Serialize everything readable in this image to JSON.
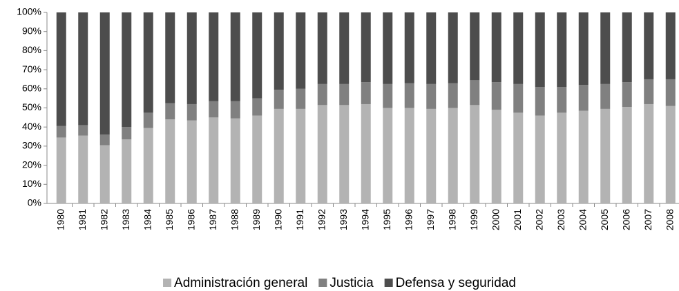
{
  "chart_data": {
    "type": "stacked_bar",
    "categories": [
      "1980",
      "1981",
      "1982",
      "1983",
      "1984",
      "1985",
      "1986",
      "1987",
      "1988",
      "1989",
      "1990",
      "1991",
      "1992",
      "1993",
      "1994",
      "1995",
      "1996",
      "1997",
      "1998",
      "1999",
      "2000",
      "2001",
      "2002",
      "2003",
      "2004",
      "2005",
      "2006",
      "2007",
      "2008"
    ],
    "series": [
      {
        "name": "Administración general",
        "color": "#b3b3b3",
        "values": [
          34.5,
          35.5,
          30.5,
          33.5,
          39.5,
          44,
          43.5,
          45,
          44.5,
          46,
          49.5,
          49.5,
          51.5,
          51.5,
          52,
          50,
          50,
          49.5,
          50,
          51.5,
          49,
          47.5,
          46,
          47.5,
          48.5,
          49.5,
          50.5,
          52,
          51
        ]
      },
      {
        "name": "Justicia",
        "color": "#808080",
        "values": [
          6,
          5.5,
          5.5,
          6.5,
          8,
          8.5,
          8.5,
          8.5,
          9,
          9,
          10,
          10.5,
          11,
          11,
          11.5,
          12.5,
          13,
          13,
          13,
          13,
          14.5,
          15,
          15,
          13.5,
          13.5,
          13,
          13,
          13,
          14
        ]
      },
      {
        "name": "Defensa y seguridad",
        "color": "#4d4d4d",
        "values": [
          59.5,
          59,
          64,
          60,
          52.5,
          47.5,
          48,
          46.5,
          46.5,
          45,
          40.5,
          40,
          37.5,
          37.5,
          36.5,
          37.5,
          37,
          37.5,
          37,
          35.5,
          36.5,
          37.5,
          39,
          39,
          38,
          37.5,
          36.5,
          35,
          35
        ]
      }
    ],
    "ylim": [
      0,
      100
    ],
    "yticks": [
      {
        "value": 0,
        "label": "0%"
      },
      {
        "value": 10,
        "label": "10%"
      },
      {
        "value": 20,
        "label": "20%"
      },
      {
        "value": 30,
        "label": "30%"
      },
      {
        "value": 40,
        "label": "40%"
      },
      {
        "value": 50,
        "label": "50%"
      },
      {
        "value": 60,
        "label": "60%"
      },
      {
        "value": 70,
        "label": "70%"
      },
      {
        "value": 80,
        "label": "80%"
      },
      {
        "value": 90,
        "label": "90%"
      },
      {
        "value": 100,
        "label": "100%"
      }
    ],
    "grid": false,
    "legend": "bottom"
  }
}
